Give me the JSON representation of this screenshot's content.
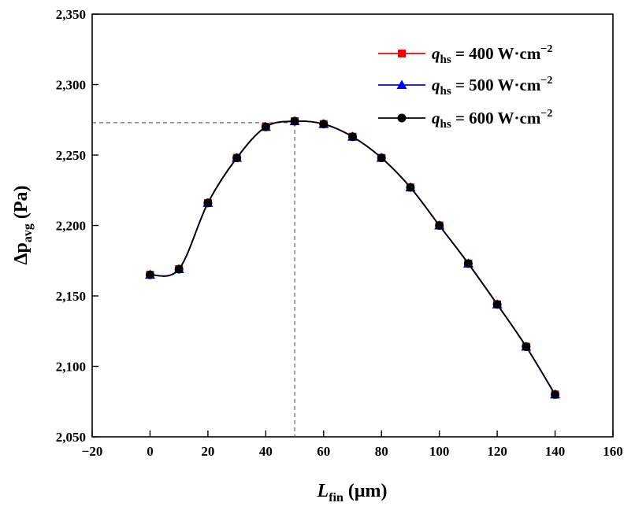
{
  "chart_data": {
    "type": "line",
    "xlabel": {
      "main": "L",
      "sub": "fin",
      "unit": " (μm)"
    },
    "ylabel": {
      "main": "Δp",
      "sub": "avg",
      "unit": " (Pa)"
    },
    "xlim": [
      -20,
      160
    ],
    "ylim": [
      2050,
      2350
    ],
    "x_ticks": [
      -20,
      0,
      20,
      40,
      60,
      80,
      100,
      120,
      140,
      160
    ],
    "x_tick_labels": [
      "−20",
      "0",
      "20",
      "40",
      "60",
      "80",
      "100",
      "120",
      "140",
      "160"
    ],
    "y_ticks": [
      2050,
      2100,
      2150,
      2200,
      2250,
      2300,
      2350
    ],
    "y_tick_labels": [
      "2,050",
      "2,100",
      "2,150",
      "2,200",
      "2,250",
      "2,300",
      "2,350"
    ],
    "grid": false,
    "legend_position": "top-right",
    "x": [
      0,
      10,
      20,
      30,
      40,
      50,
      60,
      70,
      80,
      90,
      100,
      110,
      120,
      130,
      140
    ],
    "series": [
      {
        "label": {
          "q": "q",
          "sub": "hs",
          "text": " = 400 W·cm",
          "sup": "−2"
        },
        "color": "#ff0000",
        "marker": "square",
        "values": [
          2165,
          2169,
          2216,
          2248,
          2270,
          2274,
          2272,
          2263,
          2248,
          2227,
          2200,
          2173,
          2144,
          2114,
          2080
        ]
      },
      {
        "label": {
          "q": "q",
          "sub": "hs",
          "text": " = 500 W·cm",
          "sup": "−2"
        },
        "color": "#0000ff",
        "marker": "triangle",
        "values": [
          2165,
          2169,
          2216,
          2248,
          2270,
          2274,
          2272,
          2263,
          2248,
          2227,
          2200,
          2173,
          2144,
          2114,
          2080
        ]
      },
      {
        "label": {
          "q": "q",
          "sub": "hs",
          "text": " = 600 W·cm",
          "sup": "−2"
        },
        "color": "#000000",
        "marker": "circle",
        "values": [
          2165,
          2169,
          2216,
          2248,
          2270,
          2274,
          2272,
          2263,
          2248,
          2227,
          2200,
          2173,
          2144,
          2114,
          2080
        ]
      }
    ],
    "reference_point": {
      "x": 50,
      "y": 2273
    }
  }
}
